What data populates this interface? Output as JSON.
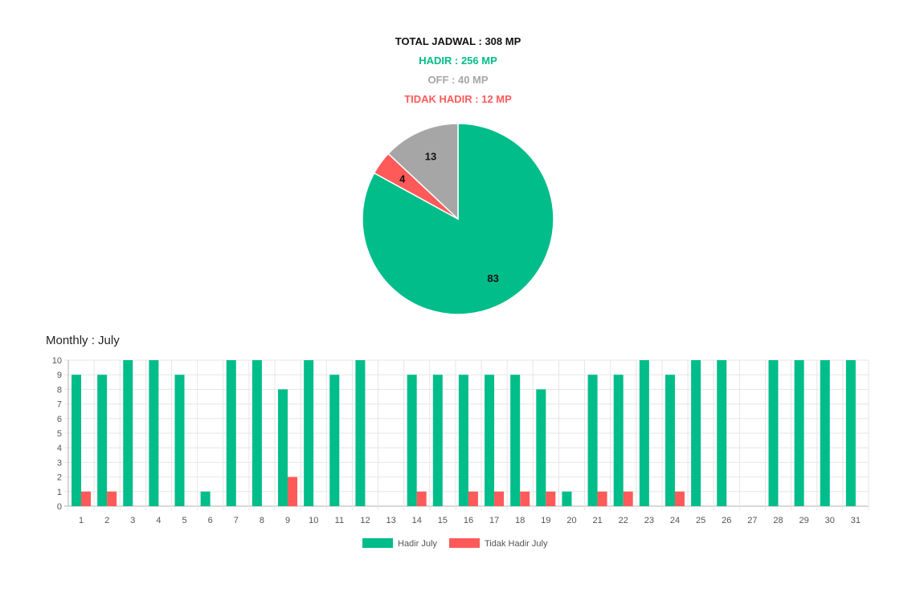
{
  "summary": {
    "total": "TOTAL JADWAL : 308 MP",
    "hadir": "HADIR : 256 MP",
    "off": "OFF : 40 MP",
    "tidak_hadir": "TIDAK HADIR : 12 MP"
  },
  "colors": {
    "hadir": "#00bd89",
    "off": "#a6a6a6",
    "tidak_hadir": "#ff5a5a",
    "total": "#111111"
  },
  "monthly_title": "Monthly : July",
  "chart_data": [
    {
      "type": "pie",
      "title": "",
      "slices": [
        {
          "label": "",
          "value": 83,
          "color": "#00bd89"
        },
        {
          "label": "",
          "value": 4,
          "color": "#ff5a5a"
        },
        {
          "label": "",
          "value": 13,
          "color": "#a6a6a6"
        }
      ]
    },
    {
      "type": "bar",
      "title": "Monthly : July",
      "categories": [
        "1",
        "2",
        "3",
        "4",
        "5",
        "6",
        "7",
        "8",
        "9",
        "10",
        "11",
        "12",
        "13",
        "14",
        "15",
        "16",
        "17",
        "18",
        "19",
        "20",
        "21",
        "22",
        "23",
        "24",
        "25",
        "26",
        "27",
        "28",
        "29",
        "30",
        "31"
      ],
      "series": [
        {
          "name": "Hadir July",
          "color": "#00bd89",
          "values": [
            9,
            9,
            10,
            10,
            9,
            1,
            10,
            10,
            8,
            10,
            9,
            10,
            0,
            9,
            9,
            9,
            9,
            9,
            8,
            1,
            9,
            9,
            10,
            9,
            10,
            10,
            0,
            10,
            10,
            10,
            10
          ]
        },
        {
          "name": "Tidak Hadir July",
          "color": "#ff5a5a",
          "values": [
            1,
            1,
            0,
            0,
            0,
            0,
            0,
            0,
            2,
            0,
            0,
            0,
            0,
            1,
            0,
            1,
            1,
            1,
            1,
            0,
            1,
            1,
            0,
            1,
            0,
            0,
            0,
            0,
            0,
            0,
            0
          ]
        }
      ],
      "ylim": [
        0,
        10
      ],
      "yticks": [
        0,
        1,
        2,
        3,
        4,
        5,
        6,
        7,
        8,
        9,
        10
      ],
      "xlabel": "",
      "ylabel": "",
      "grid": true,
      "legend_position": "bottom"
    }
  ]
}
